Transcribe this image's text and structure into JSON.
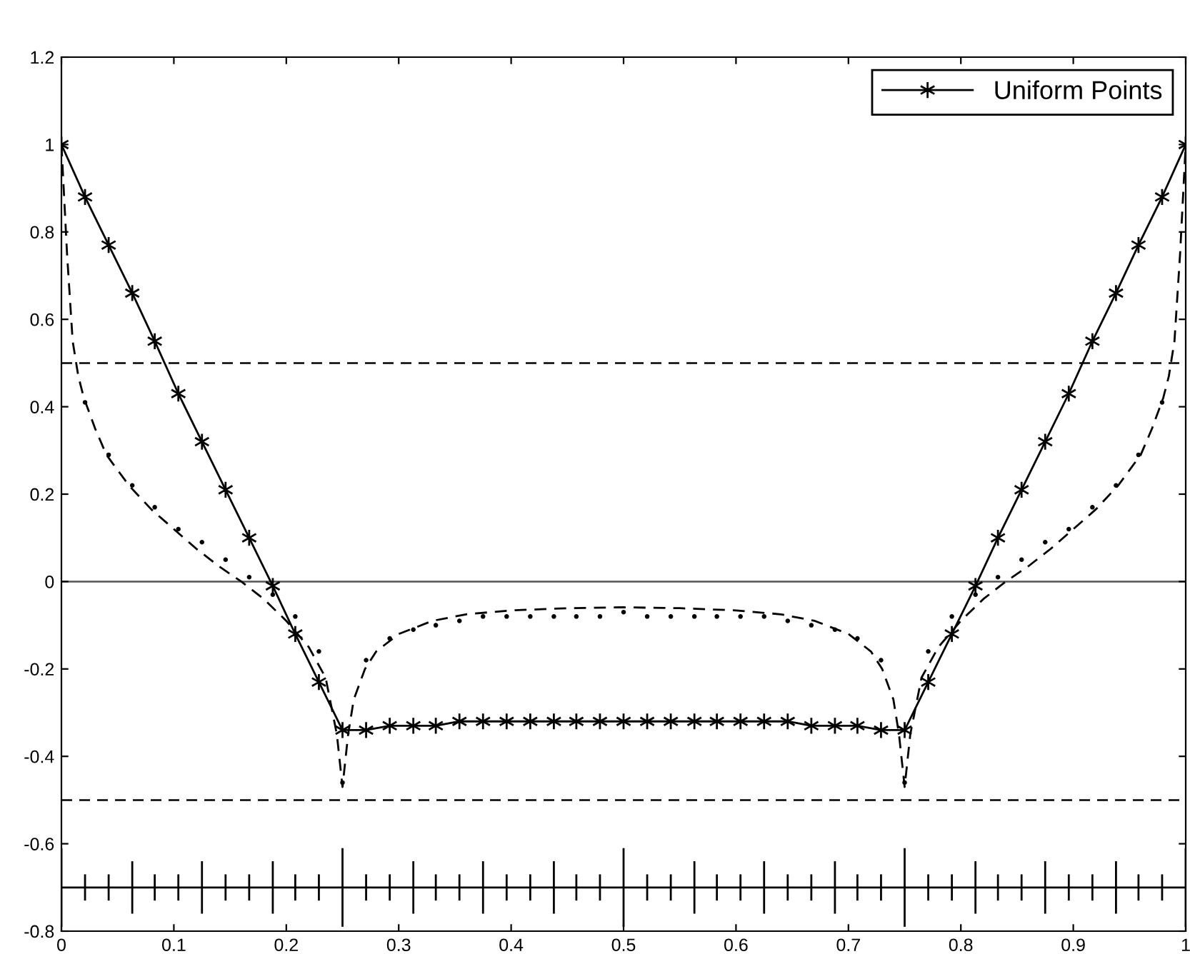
{
  "chart_data": {
    "type": "line",
    "xlim": [
      0,
      1
    ],
    "ylim": [
      -0.8,
      1.2
    ],
    "xticks": [
      0,
      0.1,
      0.2,
      0.3,
      0.4,
      0.5,
      0.6,
      0.7,
      0.8,
      0.9,
      1
    ],
    "yticks": [
      {
        "value": -0.8,
        "label": "-0.8"
      },
      {
        "value": -0.6,
        "label": "-0.6"
      },
      {
        "value": -0.4,
        "label": "-0.4"
      },
      {
        "value": -0.2,
        "label": "-0.2"
      },
      0,
      0.2,
      0.4,
      0.6,
      0.8,
      1,
      1.2
    ],
    "grid": false,
    "legend": "top right",
    "ref_lines": [
      {
        "axis": "y",
        "value": 0.5,
        "line_style": "dashed",
        "color": "#000000"
      },
      {
        "axis": "y",
        "value": -0.5,
        "line_style": "dashed",
        "color": "#000000"
      },
      {
        "axis": "y",
        "value": 0,
        "line_style": "solid",
        "color": "#555555"
      }
    ],
    "series": [
      {
        "color": "#000000",
        "line_style": "dashed",
        "marker": "none",
        "x": [
          0,
          0.002,
          0.005,
          0.01,
          0.015,
          0.02,
          0.03,
          0.04,
          0.06,
          0.08,
          0.1,
          0.12,
          0.14,
          0.16,
          0.18,
          0.2,
          0.22,
          0.235,
          0.245,
          0.25,
          0.255,
          0.26,
          0.27,
          0.28,
          0.3,
          0.33,
          0.36,
          0.4,
          0.45,
          0.5,
          0.55,
          0.6,
          0.64,
          0.67,
          0.7,
          0.72,
          0.73,
          0.74,
          0.745,
          0.75,
          0.755,
          0.765,
          0.78,
          0.8,
          0.82,
          0.84,
          0.86,
          0.88,
          0.9,
          0.92,
          0.94,
          0.96,
          0.97,
          0.98,
          0.985,
          0.99,
          0.995,
          0.998,
          1
        ],
        "values": [
          1,
          0.9,
          0.75,
          0.55,
          0.47,
          0.42,
          0.35,
          0.29,
          0.22,
          0.165,
          0.12,
          0.075,
          0.035,
          0.0,
          -0.04,
          -0.09,
          -0.15,
          -0.22,
          -0.35,
          -0.47,
          -0.35,
          -0.27,
          -0.2,
          -0.16,
          -0.12,
          -0.09,
          -0.075,
          -0.066,
          -0.061,
          -0.059,
          -0.061,
          -0.066,
          -0.075,
          -0.09,
          -0.12,
          -0.16,
          -0.2,
          -0.27,
          -0.35,
          -0.47,
          -0.35,
          -0.22,
          -0.15,
          -0.09,
          -0.04,
          0.0,
          0.035,
          0.075,
          0.12,
          0.165,
          0.22,
          0.29,
          0.35,
          0.42,
          0.47,
          0.55,
          0.75,
          0.9,
          1
        ]
      },
      {
        "type": "scatter",
        "color": "#000000",
        "marker": "dot",
        "x": [
          0.021,
          0.042,
          0.063,
          0.083,
          0.104,
          0.125,
          0.146,
          0.167,
          0.188,
          0.208,
          0.229,
          0.25,
          0.271,
          0.292,
          0.313,
          0.333,
          0.354,
          0.375,
          0.396,
          0.417,
          0.438,
          0.458,
          0.479,
          0.5,
          0.521,
          0.542,
          0.563,
          0.583,
          0.604,
          0.625,
          0.646,
          0.667,
          0.688,
          0.708,
          0.729,
          0.75,
          0.771,
          0.792,
          0.813,
          0.833,
          0.854,
          0.875,
          0.896,
          0.917,
          0.938,
          0.958,
          0.979
        ],
        "values": [
          0.41,
          0.29,
          0.22,
          0.17,
          0.12,
          0.09,
          0.05,
          0.01,
          -0.03,
          -0.08,
          -0.16,
          -0.46,
          -0.18,
          -0.13,
          -0.11,
          -0.1,
          -0.09,
          -0.08,
          -0.08,
          -0.08,
          -0.08,
          -0.08,
          -0.08,
          -0.07,
          -0.08,
          -0.08,
          -0.08,
          -0.08,
          -0.08,
          -0.08,
          -0.09,
          -0.1,
          -0.11,
          -0.13,
          -0.18,
          -0.46,
          -0.16,
          -0.08,
          -0.03,
          0.01,
          0.05,
          0.09,
          0.12,
          0.17,
          0.22,
          0.29,
          0.41
        ]
      },
      {
        "name": "Uniform Points",
        "color": "#000000",
        "line_style": "solid",
        "marker": "cross",
        "x": [
          0,
          0.021,
          0.042,
          0.063,
          0.083,
          0.104,
          0.125,
          0.146,
          0.167,
          0.188,
          0.208,
          0.229,
          0.25,
          0.271,
          0.292,
          0.313,
          0.333,
          0.354,
          0.375,
          0.396,
          0.417,
          0.438,
          0.458,
          0.479,
          0.5,
          0.521,
          0.542,
          0.563,
          0.583,
          0.604,
          0.625,
          0.646,
          0.667,
          0.688,
          0.708,
          0.729,
          0.75,
          0.771,
          0.792,
          0.813,
          0.833,
          0.854,
          0.875,
          0.896,
          0.917,
          0.938,
          0.958,
          0.979,
          1
        ],
        "values": [
          1,
          0.88,
          0.77,
          0.66,
          0.55,
          0.43,
          0.32,
          0.21,
          0.1,
          -0.01,
          -0.12,
          -0.23,
          -0.34,
          -0.34,
          -0.33,
          -0.33,
          -0.33,
          -0.32,
          -0.32,
          -0.32,
          -0.32,
          -0.32,
          -0.32,
          -0.32,
          -0.32,
          -0.32,
          -0.32,
          -0.32,
          -0.32,
          -0.32,
          -0.32,
          -0.32,
          -0.33,
          -0.33,
          -0.33,
          -0.34,
          -0.34,
          -0.23,
          -0.12,
          -0.01,
          0.1,
          0.21,
          0.32,
          0.43,
          0.55,
          0.66,
          0.77,
          0.88,
          1
        ]
      },
      {
        "type": "line",
        "color": "#000000",
        "marker": "none",
        "line_style": "solid",
        "x": [
          0,
          0.021,
          0.042,
          0.063,
          0.083,
          0.104,
          0.125,
          0.146,
          0.167,
          0.188,
          0.208,
          0.229,
          0.25,
          0.271,
          0.292,
          0.313,
          0.333,
          0.354,
          0.375,
          0.396,
          0.417,
          0.438,
          0.458,
          0.479,
          0.5,
          0.521,
          0.542,
          0.563,
          0.583,
          0.604,
          0.625,
          0.646,
          0.667,
          0.688,
          0.708,
          0.729,
          0.75,
          0.771,
          0.792,
          0.813,
          0.833,
          0.854,
          0.875,
          0.896,
          0.917,
          0.938,
          0.958,
          0.979,
          1
        ],
        "values": [
          -0.7,
          -0.7,
          -0.7,
          -0.7,
          -0.7,
          -0.7,
          -0.7,
          -0.7,
          -0.7,
          -0.7,
          -0.7,
          -0.7,
          -0.7,
          -0.7,
          -0.7,
          -0.7,
          -0.7,
          -0.7,
          -0.7,
          -0.7,
          -0.7,
          -0.7,
          -0.7,
          -0.7,
          -0.7,
          -0.7,
          -0.7,
          -0.7,
          -0.7,
          -0.7,
          -0.7,
          -0.7,
          -0.7,
          -0.7,
          -0.7,
          -0.7,
          -0.7,
          -0.7,
          -0.7,
          -0.7,
          -0.7,
          -0.7,
          -0.7,
          -0.7,
          -0.7,
          -0.7,
          -0.7,
          -0.7,
          -0.7
        ],
        "errors": [
          0.09,
          0.03,
          0.03,
          0.06,
          0.03,
          0.03,
          0.06,
          0.03,
          0.03,
          0.06,
          0.03,
          0.03,
          0.09,
          0.03,
          0.03,
          0.06,
          0.03,
          0.03,
          0.06,
          0.03,
          0.03,
          0.06,
          0.03,
          0.03,
          0.09,
          0.03,
          0.03,
          0.06,
          0.03,
          0.03,
          0.06,
          0.03,
          0.03,
          0.06,
          0.03,
          0.03,
          0.09,
          0.03,
          0.03,
          0.06,
          0.03,
          0.03,
          0.06,
          0.03,
          0.03,
          0.06,
          0.03,
          0.03,
          0.09
        ]
      }
    ]
  }
}
